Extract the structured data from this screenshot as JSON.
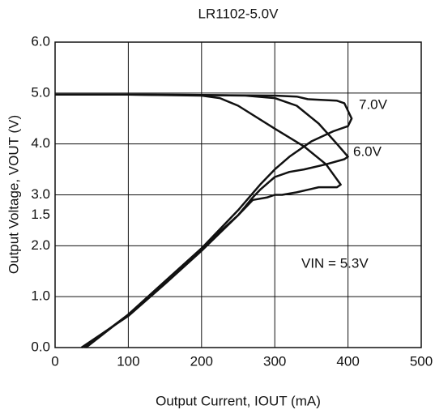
{
  "chart_data": {
    "type": "line",
    "title": "LR1102-5.0V",
    "x_label": "Output Current, IOUT (mA)",
    "y_label": "Output Voltage, VOUT (V)",
    "xlim": [
      0,
      500
    ],
    "xticks": [
      0,
      100,
      200,
      300,
      400,
      500
    ],
    "ylim": [
      0,
      6
    ],
    "yticks": [
      {
        "value": 0,
        "label": "0.0"
      },
      {
        "value": 1,
        "label": "1.0"
      },
      {
        "value": 2,
        "label": "2.0"
      },
      {
        "value": 3,
        "label": "3.0"
      },
      {
        "value": 4,
        "label": "4.0"
      },
      {
        "value": 5,
        "label": "5.0"
      },
      {
        "value": 6,
        "label": "6.0"
      }
    ],
    "annotations": [
      {
        "text": "1.5",
        "y": 2.6
      }
    ],
    "grid": true,
    "series": [
      {
        "name": "7.0V",
        "color": "#111111",
        "x": [
          0,
          100,
          200,
          300,
          330,
          345,
          385,
          395,
          405,
          400,
          380,
          350,
          320,
          300,
          280,
          250,
          200,
          150,
          100,
          42
        ],
        "values": [
          4.97,
          4.97,
          4.96,
          4.95,
          4.93,
          4.88,
          4.85,
          4.8,
          4.5,
          4.35,
          4.25,
          4.05,
          3.75,
          3.5,
          3.2,
          2.7,
          1.95,
          1.3,
          0.65,
          0.0
        ]
      },
      {
        "name": "6.0V",
        "color": "#111111",
        "x": [
          0,
          100,
          200,
          260,
          300,
          330,
          360,
          385,
          400,
          395,
          370,
          340,
          320,
          300,
          280,
          270,
          250,
          200,
          150,
          100,
          36
        ],
        "values": [
          4.97,
          4.97,
          4.96,
          4.95,
          4.9,
          4.75,
          4.4,
          4.0,
          3.75,
          3.7,
          3.6,
          3.5,
          3.45,
          3.35,
          3.1,
          2.95,
          2.6,
          1.9,
          1.25,
          0.62,
          0.0
        ]
      },
      {
        "name": "VIN = 5.3V",
        "color": "#111111",
        "x": [
          0,
          100,
          200,
          225,
          250,
          300,
          340,
          370,
          390,
          385,
          360,
          330,
          310,
          300,
          290,
          270,
          250,
          200,
          150,
          100,
          40
        ],
        "values": [
          4.97,
          4.97,
          4.95,
          4.9,
          4.75,
          4.3,
          3.95,
          3.6,
          3.2,
          3.15,
          3.15,
          3.05,
          3.0,
          3.0,
          2.95,
          2.9,
          2.6,
          1.95,
          1.3,
          0.65,
          0.0
        ]
      }
    ]
  }
}
